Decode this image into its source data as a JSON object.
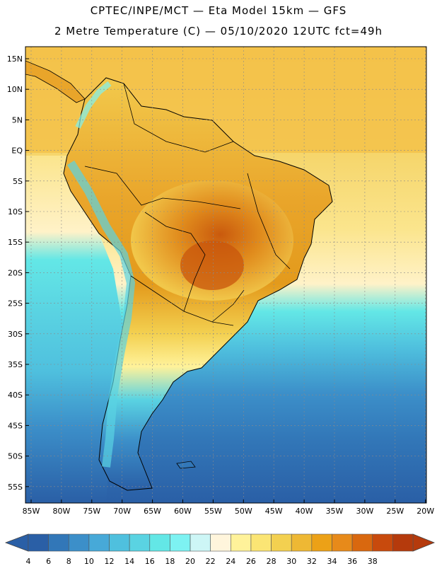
{
  "header": {
    "line1": "CPTEC/INPE/MCT —  Eta Model 15km — GFS",
    "line2": "2 Metre Temperature (C) — 05/10/2020 12UTC fct=49h"
  },
  "map": {
    "lat_labels": [
      "15N",
      "10N",
      "5N",
      "EQ",
      "5S",
      "10S",
      "15S",
      "20S",
      "25S",
      "30S",
      "35S",
      "40S",
      "45S",
      "50S",
      "55S"
    ],
    "lon_labels": [
      "85W",
      "80W",
      "75W",
      "70W",
      "65W",
      "60W",
      "55W",
      "50W",
      "45W",
      "40W",
      "35W",
      "30W",
      "25W",
      "20W"
    ],
    "colors": {
      "ocean_cold": "#2f63a6",
      "ocean_mid": "#3fa7d6",
      "ocean_cyan": "#55d6e6",
      "ocean_warm": "#fff6c2",
      "land_hot": "#e39a1c",
      "land_warm": "#f2c94c",
      "land_veryhot": "#c8560c"
    }
  },
  "colorbar": {
    "labels": [
      "4",
      "6",
      "8",
      "10",
      "12",
      "14",
      "16",
      "18",
      "20",
      "22",
      "24",
      "26",
      "28",
      "30",
      "32",
      "34",
      "36",
      "38"
    ],
    "colors": [
      "#2a5fa6",
      "#3277b8",
      "#3c8fc9",
      "#47a9d8",
      "#4fc0de",
      "#5ad3e2",
      "#63e7e6",
      "#7df2f2",
      "#cdf6f6",
      "#fff5dc",
      "#fff29a",
      "#fbe574",
      "#f3d050",
      "#eeb834",
      "#eca117",
      "#e78a1a",
      "#d9680f",
      "#c84a0d",
      "#b53a0c"
    ],
    "left_arrow_color": "#2a5fa6",
    "right_arrow_color": "#b53a0c"
  }
}
